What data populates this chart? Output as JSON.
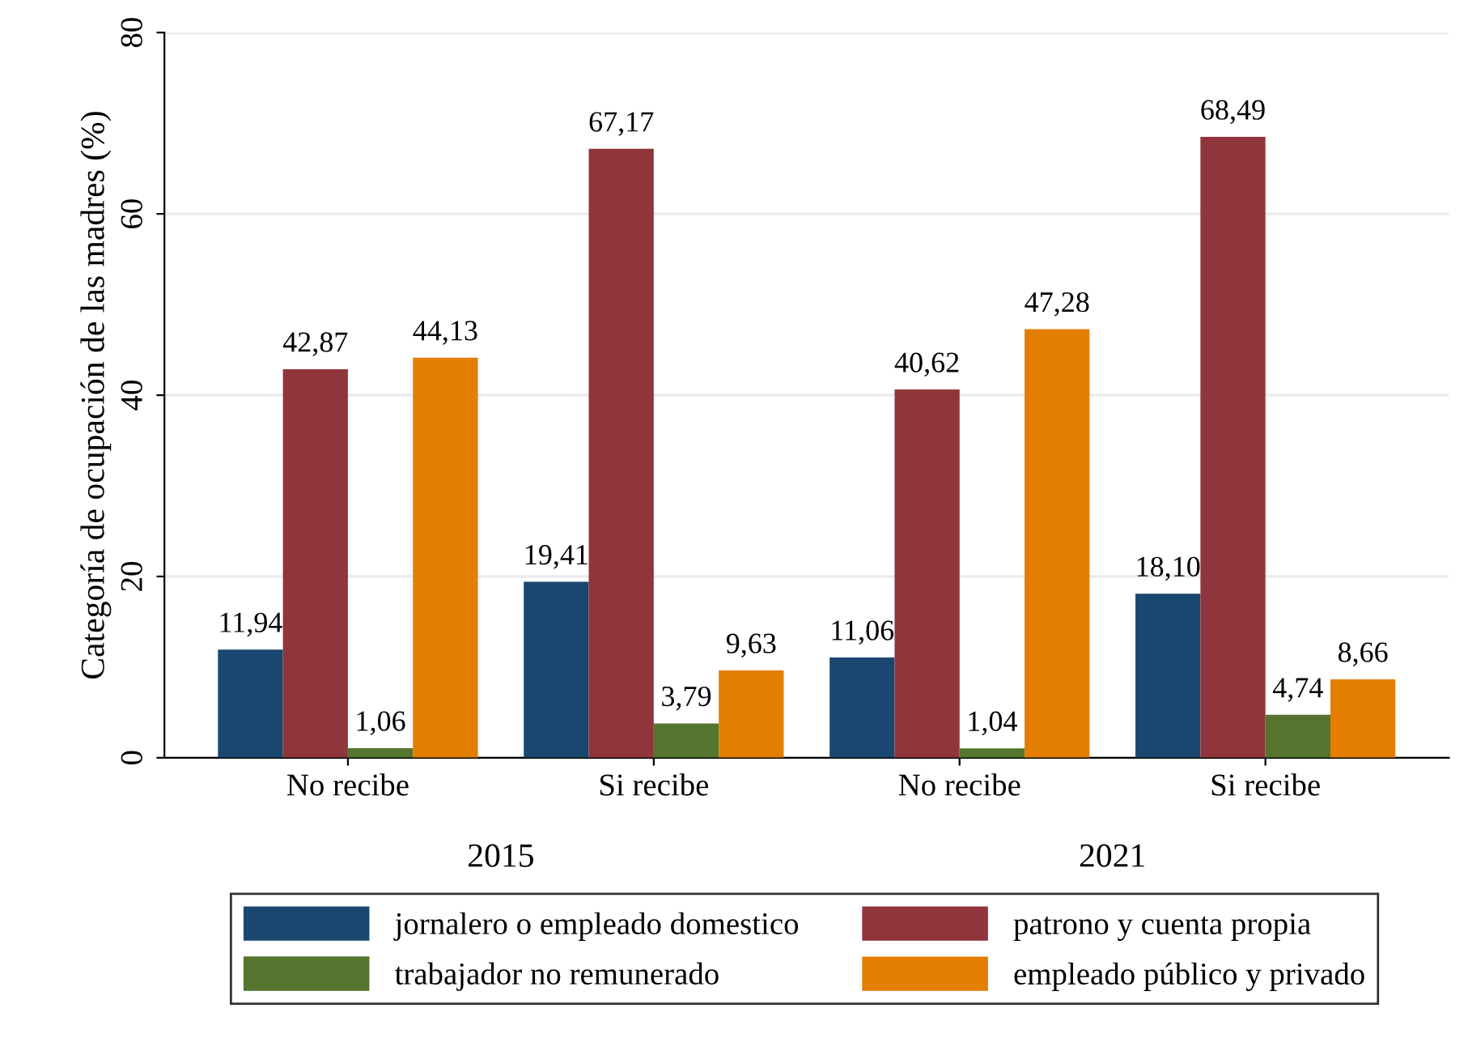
{
  "chart_data": {
    "type": "bar",
    "ylabel": "Categoría de ocupación de las madres (%)",
    "categories": [
      "No recibe",
      "Si recibe",
      "No recibe",
      "Si recibe"
    ],
    "series": [
      {
        "name": "jornalero o empleado domestico",
        "color": "#1a476f",
        "values": [
          11.94,
          19.41,
          11.06,
          18.1
        ],
        "value_labels": [
          "11,94",
          "19,41",
          "11,06",
          "18,10"
        ]
      },
      {
        "name": "patrono y cuenta propia",
        "color": "#90353b",
        "values": [
          42.87,
          67.17,
          40.62,
          68.49
        ],
        "value_labels": [
          "42,87",
          "67,17",
          "40,62",
          "68,49"
        ]
      },
      {
        "name": "trabajador no remunerado",
        "color": "#55752f",
        "values": [
          1.06,
          3.79,
          1.04,
          4.74
        ],
        "value_labels": [
          "1,06",
          "3,79",
          "1,04",
          "4,74"
        ]
      },
      {
        "name": "empleado público y privado",
        "color": "#e37e00",
        "values": [
          44.13,
          9.63,
          47.28,
          8.66
        ],
        "value_labels": [
          "44,13",
          "9,63",
          "47,28",
          "8,66"
        ]
      }
    ],
    "annotations": [
      "2015",
      "2021"
    ],
    "ylim": [
      0,
      80
    ],
    "yticks": [
      0,
      20,
      40,
      60,
      80
    ],
    "grid": "y",
    "legend": "bottom"
  }
}
